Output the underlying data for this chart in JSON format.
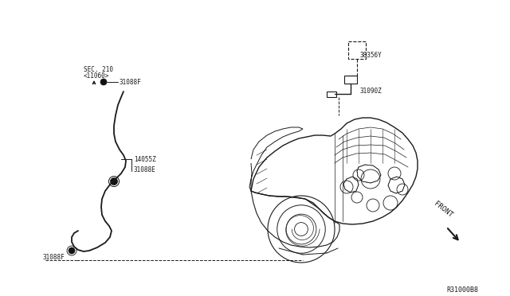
{
  "bg_color": "#ffffff",
  "line_color": "#1a1a1a",
  "text_color": "#1a1a1a",
  "labels": {
    "sec210": "SEC. 210",
    "c11060": "<11060>",
    "31088F_top": "31088F",
    "14055Z": "14055Z",
    "31088E": "31088E",
    "38356Y": "38356Y",
    "31090Z": "31090Z",
    "31088F_bot": "31088F",
    "front": "FRONT",
    "diagram_id": "R31000B8"
  }
}
